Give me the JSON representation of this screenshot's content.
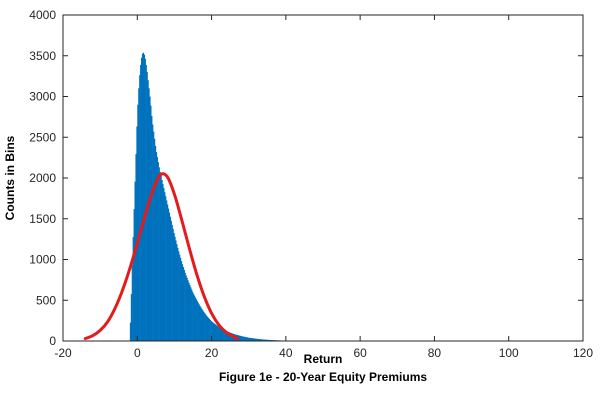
{
  "chart_data": {
    "type": "bar",
    "xlabel": "Return",
    "ylabel": "Counts in Bins",
    "caption": "Figure 1e - 20-Year Equity Premiums",
    "xlim": [
      -20,
      120
    ],
    "ylim": [
      0,
      4000
    ],
    "xticks": [
      -20,
      0,
      20,
      40,
      60,
      80,
      100,
      120
    ],
    "yticks": [
      0,
      500,
      1000,
      1500,
      2000,
      2500,
      3000,
      3500,
      4000
    ],
    "grid": false,
    "colors": {
      "histogram": "#0072BD",
      "normal_fit": "#E41A1C",
      "axes": "#262626"
    },
    "histogram": {
      "name": "",
      "x": [
        -2,
        -1,
        0,
        0.5,
        1,
        1.5,
        2,
        2.5,
        3,
        3.5,
        4,
        5,
        6,
        7,
        8,
        9,
        10,
        11,
        12,
        13,
        14,
        15,
        16,
        17,
        18,
        19,
        20,
        22,
        24,
        26,
        28,
        30,
        32,
        34,
        36,
        38,
        40,
        42
      ],
      "values": [
        50,
        1450,
        2800,
        3200,
        3450,
        3550,
        3500,
        3350,
        3150,
        2950,
        2700,
        2350,
        2100,
        1900,
        1700,
        1500,
        1300,
        1120,
        960,
        820,
        700,
        590,
        500,
        420,
        350,
        290,
        240,
        170,
        120,
        85,
        60,
        40,
        28,
        18,
        12,
        8,
        4,
        2
      ]
    },
    "normal_fit": {
      "name": "",
      "x": [
        -14,
        -12,
        -10,
        -8,
        -6,
        -4,
        -2,
        0,
        2,
        4,
        6,
        8,
        10,
        12,
        14,
        16,
        18,
        20,
        22,
        24,
        26,
        27
      ],
      "values": [
        30,
        65,
        130,
        235,
        400,
        620,
        890,
        1200,
        1520,
        1820,
        2030,
        2020,
        1800,
        1480,
        1140,
        820,
        550,
        340,
        195,
        105,
        52,
        30
      ]
    }
  }
}
